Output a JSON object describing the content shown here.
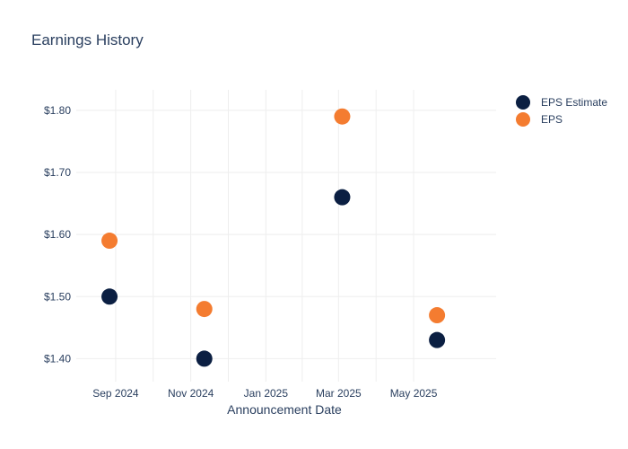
{
  "chart_data": {
    "type": "scatter",
    "title": "Earnings History",
    "xlabel": "Announcement Date",
    "ylabel": "",
    "x_ticks": [
      {
        "label": "Sep 2024",
        "date": "2024-09-01"
      },
      {
        "label": "Nov 2024",
        "date": "2024-11-01"
      },
      {
        "label": "Jan 2025",
        "date": "2025-01-01"
      },
      {
        "label": "Mar 2025",
        "date": "2025-03-01"
      },
      {
        "label": "May 2025",
        "date": "2025-05-01"
      }
    ],
    "y_ticks": [
      {
        "label": "$1.40",
        "value": 1.4
      },
      {
        "label": "$1.50",
        "value": 1.5
      },
      {
        "label": "$1.60",
        "value": 1.6
      },
      {
        "label": "$1.70",
        "value": 1.7
      },
      {
        "label": "$1.80",
        "value": 1.8
      }
    ],
    "xlim": [
      "2024-07-31",
      "2025-07-07"
    ],
    "ylim": [
      1.363,
      1.833
    ],
    "grid": true,
    "legend_position": "top-right",
    "series": [
      {
        "name": "EPS Estimate",
        "color": "#0b1f42",
        "points": [
          {
            "x": "2024-08-27",
            "y": 1.5
          },
          {
            "x": "2024-11-12",
            "y": 1.4
          },
          {
            "x": "2025-03-04",
            "y": 1.66
          },
          {
            "x": "2025-05-20",
            "y": 1.43
          }
        ]
      },
      {
        "name": "EPS",
        "color": "#f47c30",
        "points": [
          {
            "x": "2024-08-27",
            "y": 1.59
          },
          {
            "x": "2024-11-12",
            "y": 1.48
          },
          {
            "x": "2025-03-04",
            "y": 1.79
          },
          {
            "x": "2025-05-20",
            "y": 1.47
          }
        ]
      }
    ]
  }
}
